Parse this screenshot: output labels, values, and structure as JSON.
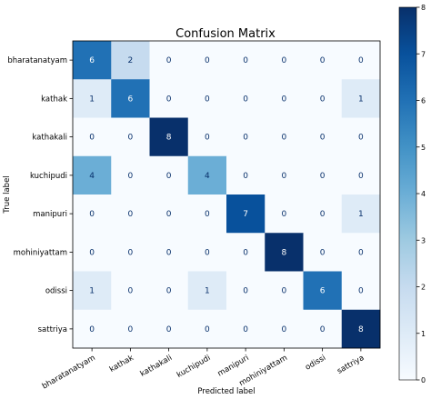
{
  "chart_data": {
    "type": "heatmap",
    "title": "Confusion Matrix",
    "xlabel": "Predicted label",
    "ylabel": "True label",
    "labels": [
      "bharatanatyam",
      "kathak",
      "kathakali",
      "kuchipudi",
      "manipuri",
      "mohiniyattam",
      "odissi",
      "sattriya"
    ],
    "matrix": [
      [
        6,
        2,
        0,
        0,
        0,
        0,
        0,
        0
      ],
      [
        1,
        6,
        0,
        0,
        0,
        0,
        0,
        1
      ],
      [
        0,
        0,
        8,
        0,
        0,
        0,
        0,
        0
      ],
      [
        4,
        0,
        0,
        4,
        0,
        0,
        0,
        0
      ],
      [
        0,
        0,
        0,
        0,
        7,
        0,
        0,
        1
      ],
      [
        0,
        0,
        0,
        0,
        0,
        8,
        0,
        0
      ],
      [
        1,
        0,
        0,
        1,
        0,
        0,
        6,
        0
      ],
      [
        0,
        0,
        0,
        0,
        0,
        0,
        0,
        8
      ]
    ],
    "colormap": "Blues",
    "vmin": 0,
    "vmax": 8,
    "colorbar_ticks": [
      0,
      1,
      2,
      3,
      4,
      5,
      6,
      7,
      8
    ]
  }
}
